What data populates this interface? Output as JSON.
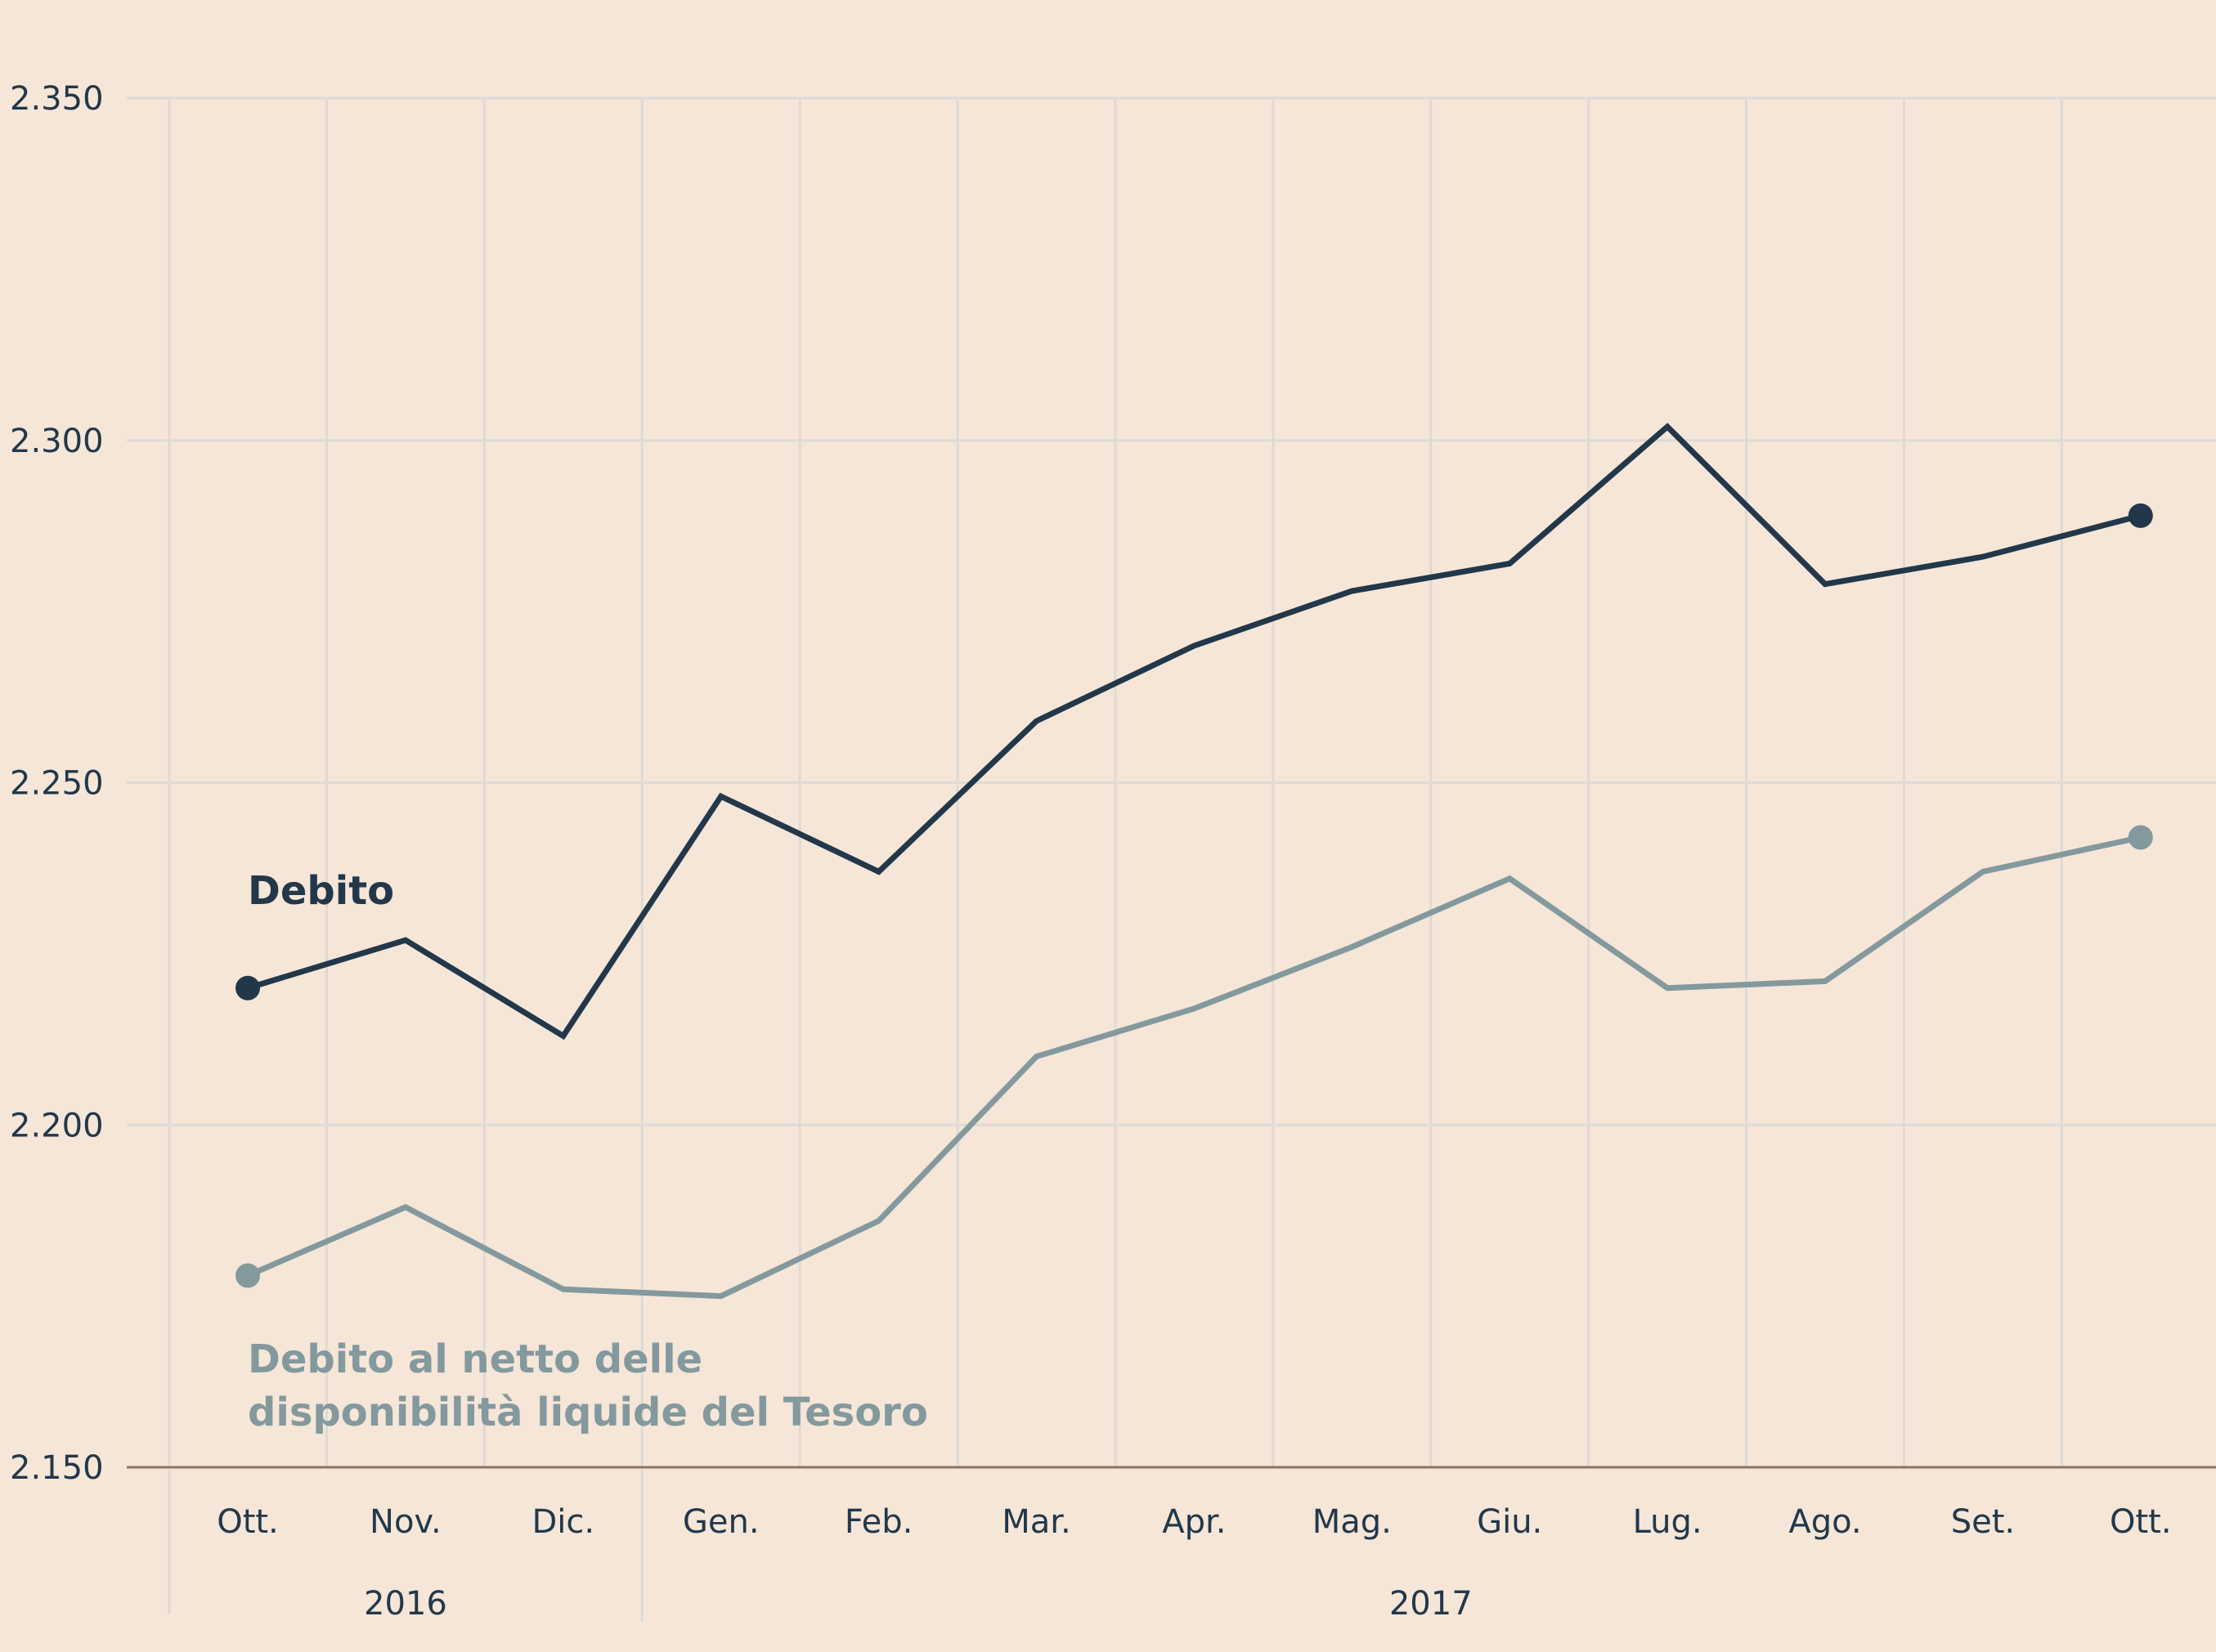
{
  "chart_data": {
    "type": "line",
    "title": "",
    "xlabel": "",
    "ylabel": "",
    "categories": [
      "Ott.",
      "Nov.",
      "Dic.",
      "Gen.",
      "Feb.",
      "Mar.",
      "Apr.",
      "Mag.",
      "Giu.",
      "Lug.",
      "Ago.",
      "Set.",
      "Ott."
    ],
    "years": [
      {
        "label": "2016",
        "from": 0,
        "to": 2
      },
      {
        "label": "2017",
        "from": 3,
        "to": 12
      }
    ],
    "ylim": [
      2150,
      2350
    ],
    "yticks": [
      2150,
      2200,
      2250,
      2300,
      2350
    ],
    "ytick_labels": [
      "2.150",
      "2.200",
      "2.250",
      "2.300",
      "2.350"
    ],
    "grid": true,
    "series": [
      {
        "name": "Debito",
        "color": "#22384a",
        "values": [
          2220,
          2227,
          2213,
          2248,
          2237,
          2259,
          2270,
          2278,
          2282,
          2302,
          2279,
          2283,
          2289
        ]
      },
      {
        "name": "Debito al netto delle disponibilità liquide del Tesoro",
        "name_lines": [
          "Debito al netto delle",
          "disponibilità liquide del Tesoro"
        ],
        "color": "#83999d",
        "values": [
          2178,
          2188,
          2176,
          2175,
          2186,
          2210,
          2217,
          2226,
          2236,
          2220,
          2221,
          2237,
          2242
        ]
      }
    ]
  }
}
